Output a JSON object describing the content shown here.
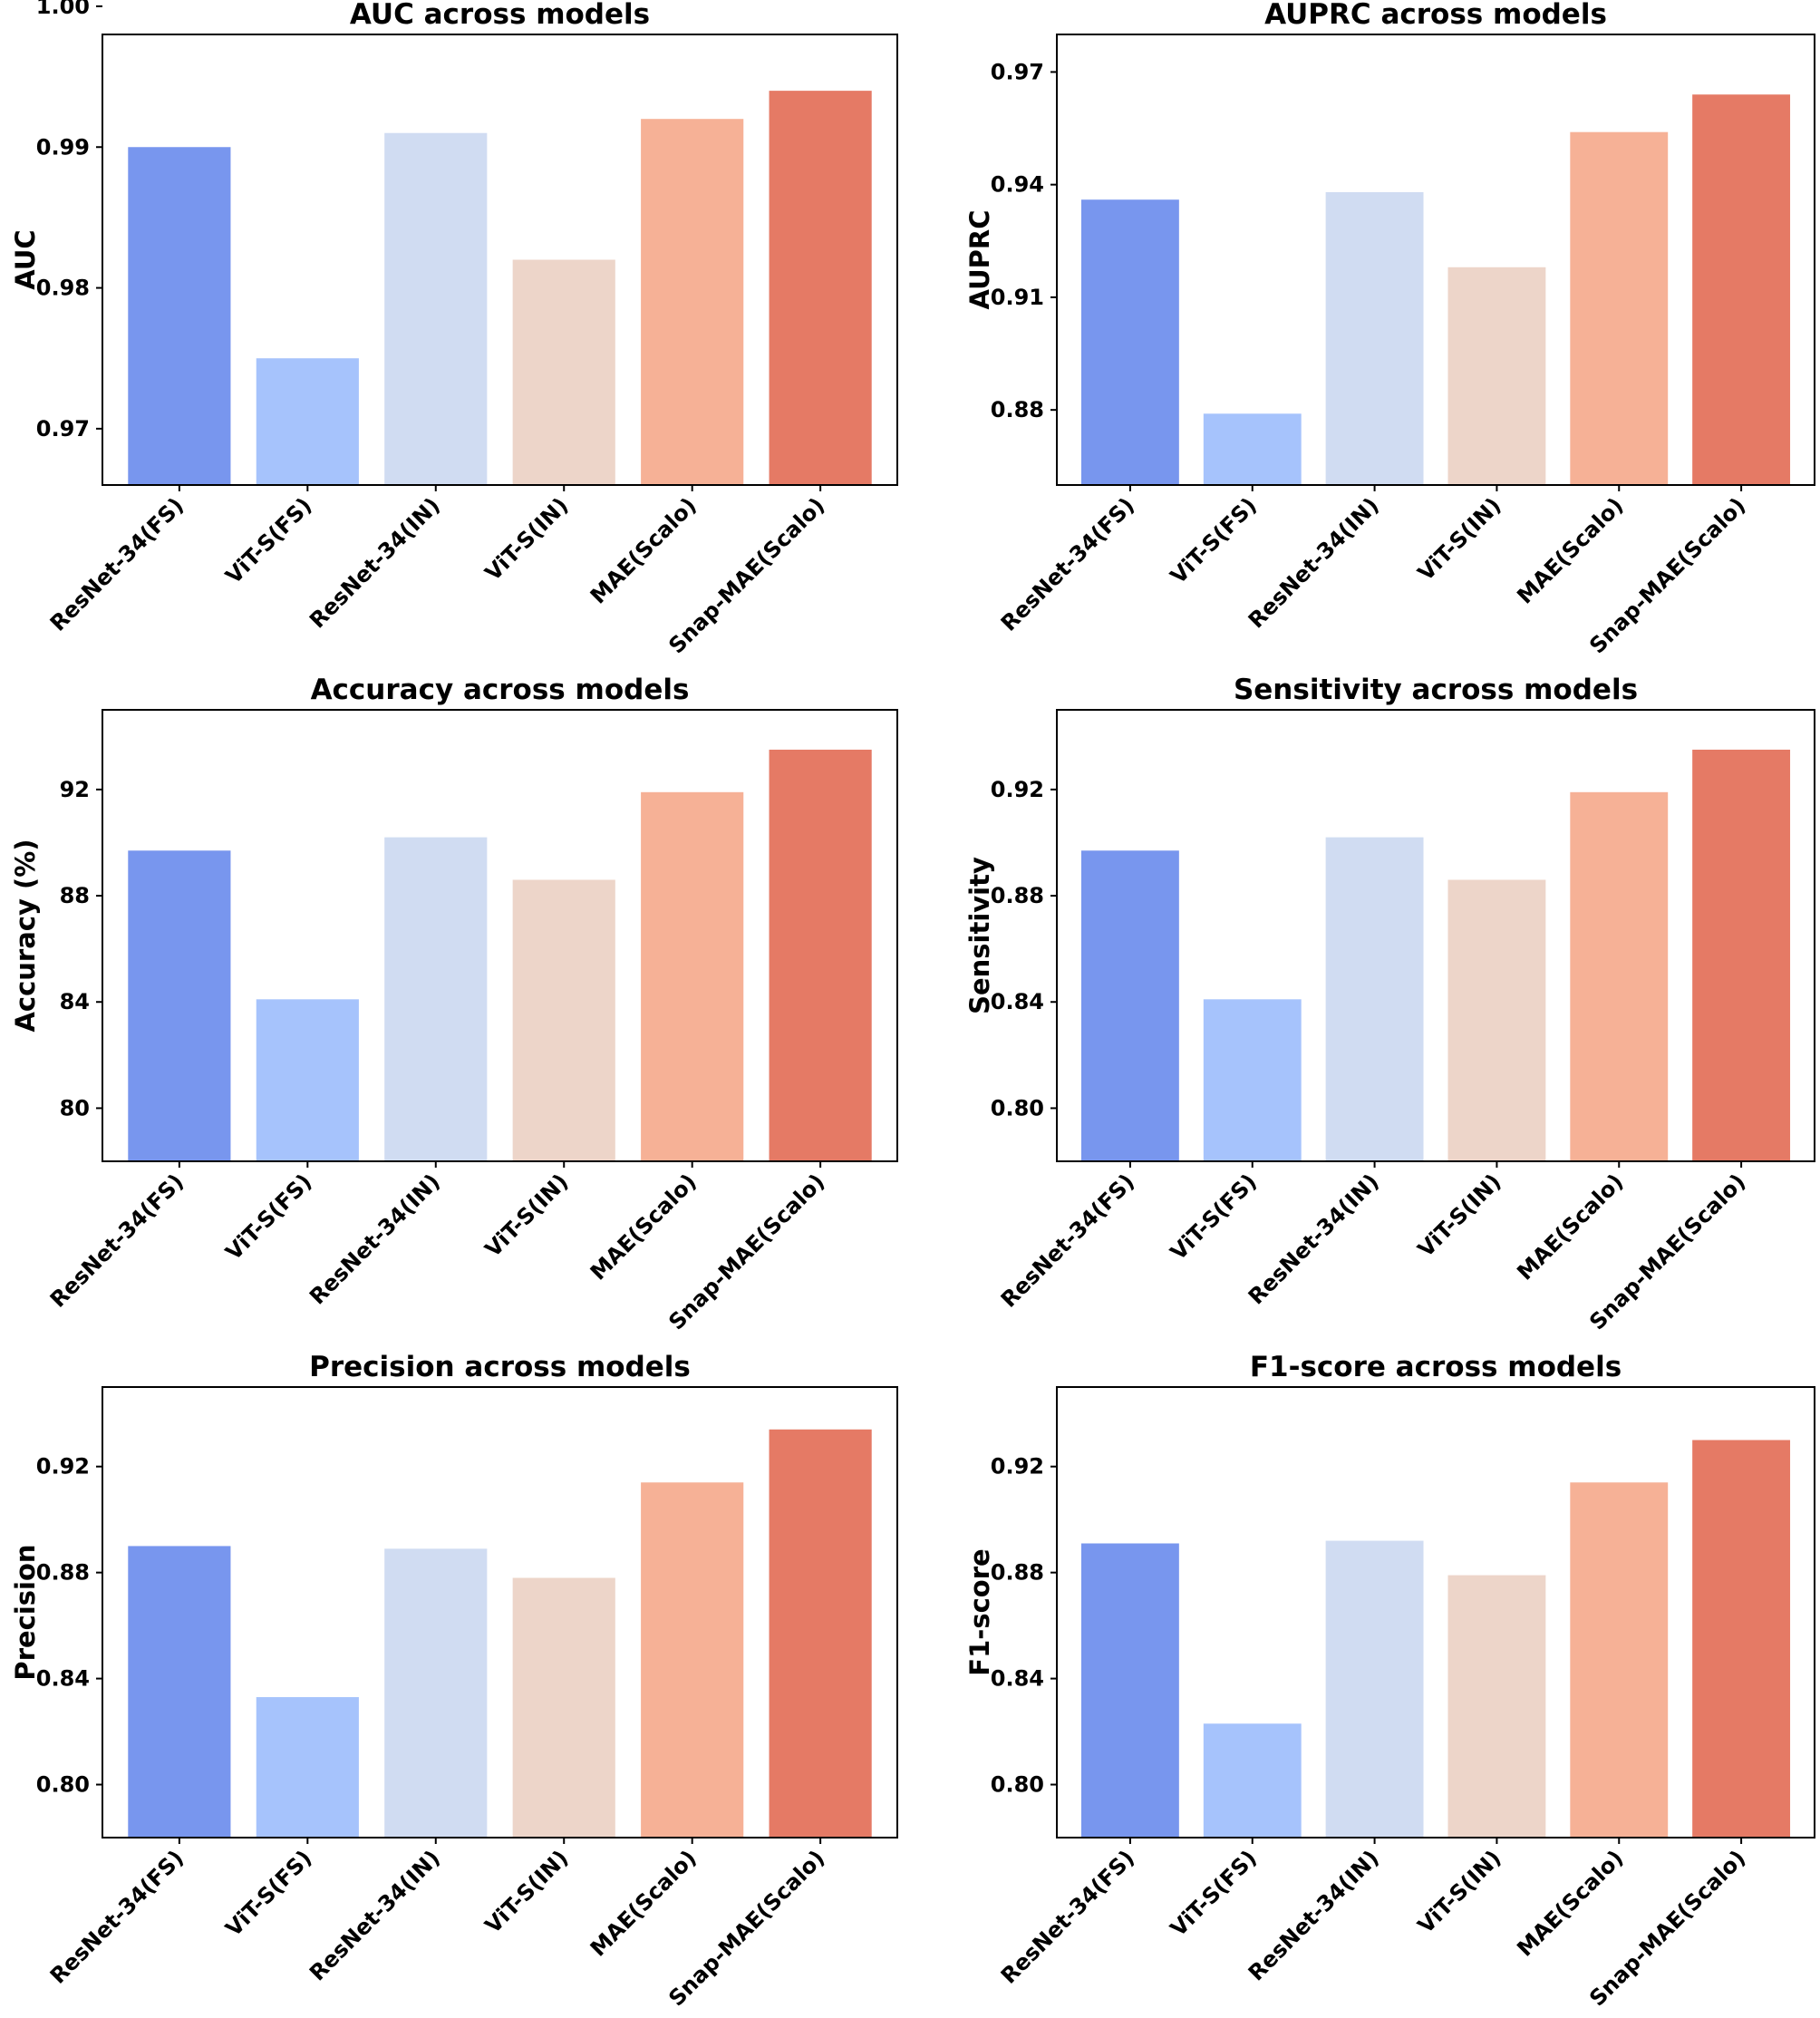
{
  "categories": [
    "ResNet-34(FS)",
    "ViT-S(FS)",
    "ResNet-34(IN)",
    "ViT-S(IN)",
    "MAE(Scalo)",
    "Snap-MAE(Scalo)"
  ],
  "colors": [
    "#7896ee",
    "#a6c3fc",
    "#d0dcf2",
    "#edd5c9",
    "#f6b196",
    "#e57a65"
  ],
  "chart_data": [
    {
      "type": "bar",
      "title": "AUC across models",
      "ylabel": "AUC",
      "ylim": [
        0.966,
        0.998
      ],
      "yticks": [
        0.97,
        0.98,
        0.99,
        1.0
      ],
      "ytick_labels": [
        "0.97",
        "0.98",
        "0.99",
        "1.00"
      ],
      "categories": [
        "ResNet-34(FS)",
        "ViT-S(FS)",
        "ResNet-34(IN)",
        "ViT-S(IN)",
        "MAE(Scalo)",
        "Snap-MAE(Scalo)"
      ],
      "values": [
        0.99,
        0.975,
        0.991,
        0.982,
        0.992,
        0.994
      ]
    },
    {
      "type": "bar",
      "title": "AUPRC across models",
      "ylabel": "AUPRC",
      "ylim": [
        0.86,
        0.98
      ],
      "yticks": [
        0.88,
        0.91,
        0.94,
        0.97
      ],
      "ytick_labels": [
        "0.88",
        "0.91",
        "0.94",
        "0.97"
      ],
      "categories": [
        "ResNet-34(FS)",
        "ViT-S(FS)",
        "ResNet-34(IN)",
        "ViT-S(IN)",
        "MAE(Scalo)",
        "Snap-MAE(Scalo)"
      ],
      "values": [
        0.936,
        0.879,
        0.938,
        0.918,
        0.954,
        0.964
      ]
    },
    {
      "type": "bar",
      "title": "Accuracy across models",
      "ylabel": "Accuracy (%)",
      "ylim": [
        78.0,
        95.0
      ],
      "yticks": [
        80,
        84,
        88,
        92
      ],
      "ytick_labels": [
        "80",
        "84",
        "88",
        "92"
      ],
      "categories": [
        "ResNet-34(FS)",
        "ViT-S(FS)",
        "ResNet-34(IN)",
        "ViT-S(IN)",
        "MAE(Scalo)",
        "Snap-MAE(Scalo)"
      ],
      "values": [
        89.7,
        84.1,
        90.2,
        88.6,
        91.9,
        93.5
      ]
    },
    {
      "type": "bar",
      "title": "Sensitivity across models",
      "ylabel": "Sensitivity",
      "ylim": [
        0.78,
        0.95
      ],
      "yticks": [
        0.8,
        0.84,
        0.88,
        0.92
      ],
      "ytick_labels": [
        "0.80",
        "0.84",
        "0.88",
        "0.92"
      ],
      "categories": [
        "ResNet-34(FS)",
        "ViT-S(FS)",
        "ResNet-34(IN)",
        "ViT-S(IN)",
        "MAE(Scalo)",
        "Snap-MAE(Scalo)"
      ],
      "values": [
        0.897,
        0.841,
        0.902,
        0.886,
        0.919,
        0.935
      ]
    },
    {
      "type": "bar",
      "title": "Precision across models",
      "ylabel": "Precision",
      "ylim": [
        0.78,
        0.95
      ],
      "yticks": [
        0.8,
        0.84,
        0.88,
        0.92
      ],
      "ytick_labels": [
        "0.80",
        "0.84",
        "0.88",
        "0.92"
      ],
      "categories": [
        "ResNet-34(FS)",
        "ViT-S(FS)",
        "ResNet-34(IN)",
        "ViT-S(IN)",
        "MAE(Scalo)",
        "Snap-MAE(Scalo)"
      ],
      "values": [
        0.89,
        0.833,
        0.889,
        0.878,
        0.914,
        0.934
      ]
    },
    {
      "type": "bar",
      "title": "F1-score across models",
      "ylabel": "F1-score",
      "ylim": [
        0.78,
        0.95
      ],
      "yticks": [
        0.8,
        0.84,
        0.88,
        0.92
      ],
      "ytick_labels": [
        "0.80",
        "0.84",
        "0.88",
        "0.92"
      ],
      "categories": [
        "ResNet-34(FS)",
        "ViT-S(FS)",
        "ResNet-34(IN)",
        "ViT-S(IN)",
        "MAE(Scalo)",
        "Snap-MAE(Scalo)"
      ],
      "values": [
        0.891,
        0.823,
        0.892,
        0.879,
        0.914,
        0.93
      ]
    }
  ]
}
